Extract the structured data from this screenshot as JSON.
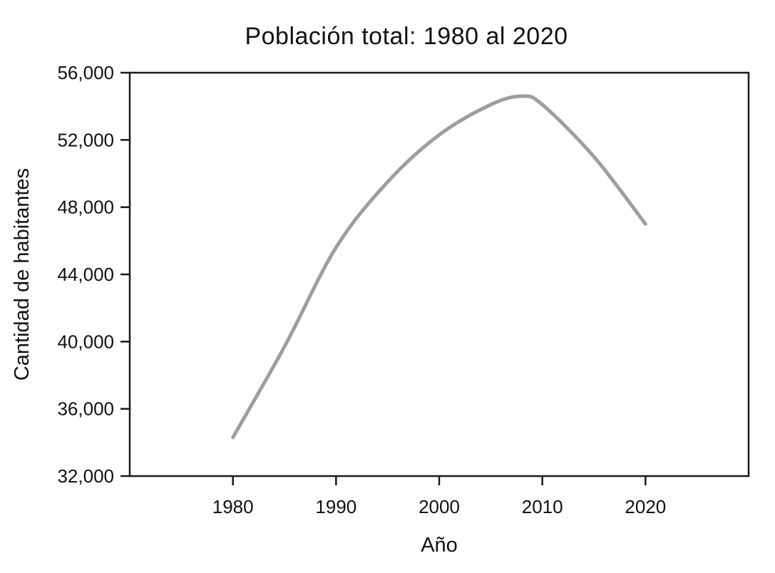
{
  "figure": {
    "background": "#ffffff",
    "text_color": "#111111"
  },
  "chart_data": {
    "type": "line",
    "title": "Población total: 1980 al 2020",
    "xlabel": "Año",
    "ylabel": "Cantidad de habitantes",
    "xlim": [
      1970,
      2030
    ],
    "ylim": [
      32000,
      56000
    ],
    "x_ticks": [
      1980,
      1990,
      2000,
      2010,
      2020
    ],
    "y_ticks": [
      32000,
      36000,
      40000,
      44000,
      48000,
      52000,
      56000
    ],
    "grid": false,
    "legend": false,
    "axis_color": "#1a1a1a",
    "series": [
      {
        "name": "poblacion-total",
        "color": "#9e9e9e",
        "stroke_width": 5,
        "x": [
          1980,
          1985,
          1990,
          1995,
          2000,
          2005,
          2008,
          2010,
          2015,
          2020
        ],
        "values": [
          34300,
          39700,
          45600,
          49500,
          52300,
          54100,
          54600,
          54100,
          51000,
          47000
        ]
      }
    ]
  }
}
